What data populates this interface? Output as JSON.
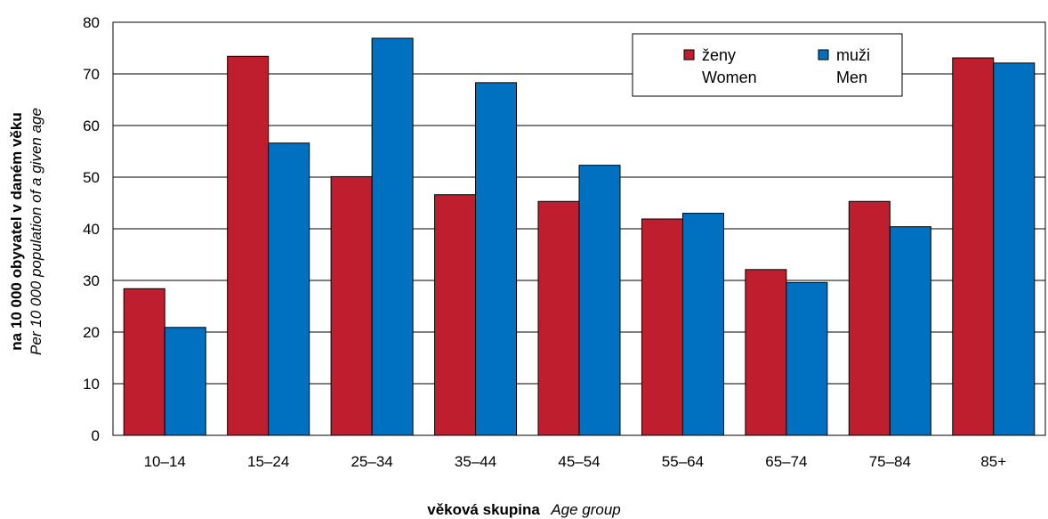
{
  "chart_data": {
    "type": "bar",
    "categories": [
      "10–14",
      "15–24",
      "25–34",
      "35–44",
      "45–54",
      "55–64",
      "65–74",
      "75–84",
      "85+"
    ],
    "series": [
      {
        "name": "ženy Women",
        "label_cs": "ženy",
        "label_en": "Women",
        "color": "#be1e2d",
        "values": [
          28.4,
          73.4,
          50.1,
          46.6,
          45.3,
          41.9,
          32.1,
          45.3,
          73.1
        ]
      },
      {
        "name": "muži Men",
        "label_cs": "muži",
        "label_en": "Men",
        "color": "#0070c0",
        "values": [
          20.9,
          56.6,
          76.9,
          68.3,
          52.3,
          43.0,
          29.6,
          40.4,
          72.1
        ]
      }
    ],
    "ylim": [
      0,
      80
    ],
    "yticks": [
      0,
      10,
      20,
      30,
      40,
      50,
      60,
      70,
      80
    ],
    "ylabel": {
      "bold": "na 10 000 obyvatel v daném věku",
      "italic": "Per 10 000 population of a given age"
    },
    "xlabel": {
      "bold": "věková skupina",
      "italic": "Age group"
    },
    "grid": true,
    "legend_position": "top-right"
  }
}
